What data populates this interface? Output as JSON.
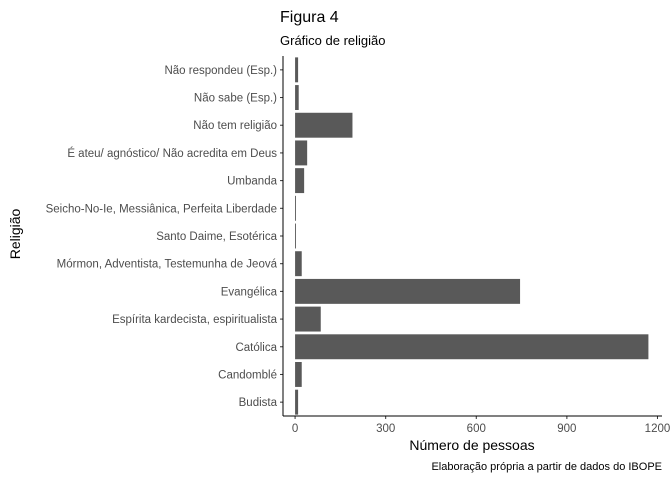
{
  "chart_data": {
    "type": "bar",
    "orientation": "horizontal",
    "title": "Figura 4",
    "subtitle": "Gráfico de religião",
    "xlabel": "Número de pessoas",
    "ylabel": "Religião",
    "caption": "Elaboração própria a partir de dados do IBOPE",
    "categories": [
      "Não respondeu (Esp.)",
      "Não sabe (Esp.)",
      "Não tem religião",
      "É ateu/ agnóstico/ Não acredita em Deus",
      "Umbanda",
      "Seicho-No-Ie, Messiânica, Perfeita Liberdade",
      "Santo Daime, Esotérica",
      "Mórmon, Adventista, Testemunha de Jeová",
      "Evangélica",
      "Espírita kardecista, espiritualista",
      "Católica",
      "Candomblé",
      "Budista"
    ],
    "values": [
      10,
      12,
      190,
      40,
      30,
      3,
      3,
      22,
      745,
      85,
      1170,
      22,
      10
    ],
    "xticks": [
      0,
      300,
      600,
      900,
      1200
    ],
    "xlim": [
      -40,
      1215
    ],
    "grid": false,
    "bar_color": "#595959"
  }
}
